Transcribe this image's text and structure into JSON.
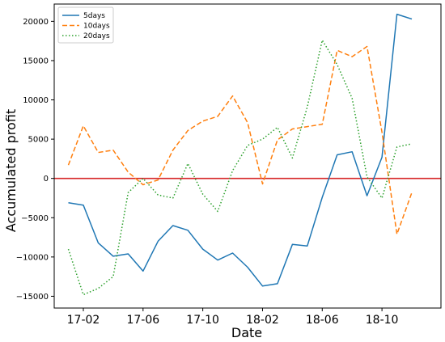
{
  "chart_data": {
    "type": "line",
    "xlabel": "Date",
    "ylabel": "Accumulated profit",
    "x_tick_labels": [
      "17-02",
      "17-06",
      "17-10",
      "18-02",
      "18-06",
      "18-10"
    ],
    "x_tick_indices": [
      1,
      5,
      9,
      13,
      17,
      21
    ],
    "ylim": [
      -16500,
      22200
    ],
    "y_ticks": [
      -15000,
      -10000,
      -5000,
      0,
      5000,
      10000,
      15000,
      20000
    ],
    "y_tick_labels": [
      "−15000",
      "−10000",
      "−5000",
      "0",
      "5000",
      "10000",
      "15000",
      "20000"
    ],
    "xlim": [
      -0.95,
      24.95
    ],
    "legend_position": "top-left",
    "grid": false,
    "reference_line": {
      "y": 0,
      "color": "#d62728"
    },
    "x": [
      "17-01",
      "17-02",
      "17-03",
      "17-04",
      "17-05",
      "17-06",
      "17-07",
      "17-08",
      "17-09",
      "17-10",
      "17-11",
      "17-12",
      "18-01",
      "18-02",
      "18-03",
      "18-04",
      "18-05",
      "18-06",
      "18-07",
      "18-08",
      "18-09",
      "18-10",
      "18-11",
      "18-12"
    ],
    "series": [
      {
        "name": "5days",
        "color": "#1f77b4",
        "dash": "solid",
        "values": [
          -3100,
          -3400,
          -8200,
          -9900,
          -9600,
          -11800,
          -8000,
          -6000,
          -6600,
          -9000,
          -10400,
          -9500,
          -11300,
          -13700,
          -13400,
          -8400,
          -8600,
          -2400,
          3000,
          3400,
          -2200,
          2700,
          20900,
          20300
        ]
      },
      {
        "name": "10days",
        "color": "#ff7f0e",
        "dash": "dashed",
        "values": [
          1700,
          6700,
          3300,
          3600,
          800,
          -800,
          -200,
          3600,
          6100,
          7300,
          7900,
          10500,
          7100,
          -700,
          4900,
          6300,
          6600,
          6900,
          16300,
          15500,
          16800,
          5900,
          -7100,
          -1800
        ]
      },
      {
        "name": "20days",
        "color": "#2ca02c",
        "dash": "dotted",
        "values": [
          -9000,
          -14800,
          -14000,
          -12500,
          -1800,
          0,
          -2100,
          -2500,
          1900,
          -2000,
          -4200,
          1000,
          4200,
          5000,
          6500,
          2600,
          9100,
          17600,
          14500,
          10200,
          200,
          -2500,
          4000,
          4400
        ]
      }
    ]
  }
}
